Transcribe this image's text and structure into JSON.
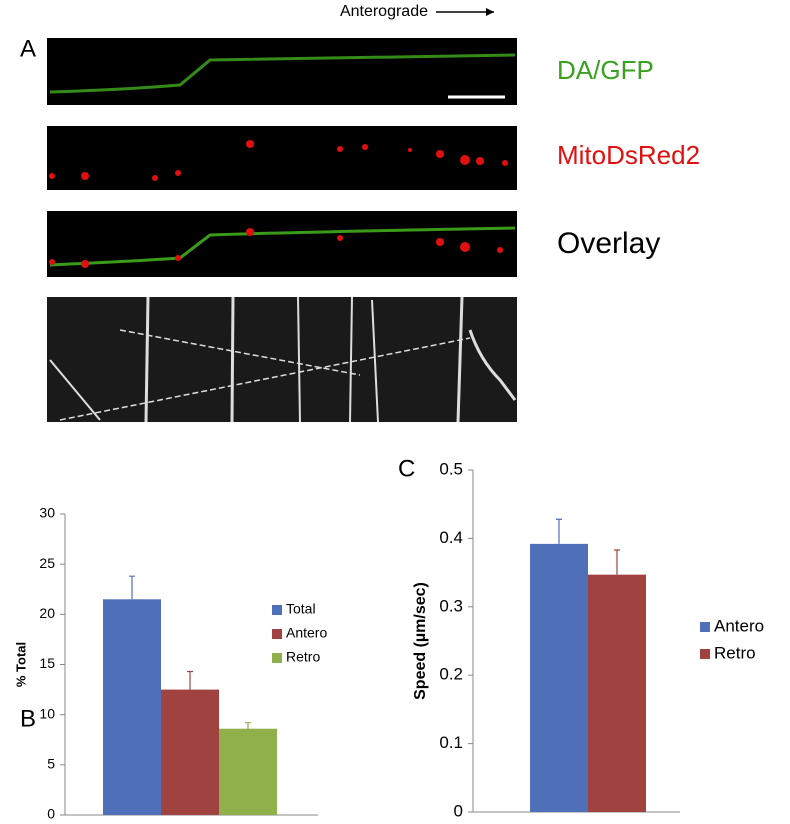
{
  "panel_a": {
    "label": "A",
    "direction": "Anterograde",
    "channels": [
      "DA/GFP",
      "MitoDsRed2",
      "Overlay"
    ]
  },
  "chart_data": [
    {
      "type": "bar",
      "label": "B",
      "ylabel": "% Total",
      "categories": [
        null
      ],
      "ylim": [
        0,
        30
      ],
      "yticks": [
        0,
        5,
        10,
        15,
        20,
        25,
        30
      ],
      "series": [
        {
          "name": "Total",
          "color": "#4f6fb8",
          "values": [
            21.5
          ],
          "errors": [
            2.3
          ]
        },
        {
          "name": "Antero",
          "color": "#a04340",
          "values": [
            12.5
          ],
          "errors": [
            1.8
          ]
        },
        {
          "name": "Retro",
          "color": "#8fb04a",
          "values": [
            8.6
          ],
          "errors": [
            0.6
          ]
        }
      ]
    },
    {
      "type": "bar",
      "label": "C",
      "ylabel": "Speed (µm/sec)",
      "categories": [
        null
      ],
      "ylim": [
        0,
        0.5
      ],
      "yticks": [
        0,
        0.1,
        0.2,
        0.3,
        0.4,
        0.5
      ],
      "series": [
        {
          "name": "Antero",
          "color": "#4f6fb8",
          "values": [
            0.392
          ],
          "errors": [
            0.036
          ]
        },
        {
          "name": "Retro",
          "color": "#a04340",
          "values": [
            0.347
          ],
          "errors": [
            0.036
          ]
        }
      ]
    }
  ]
}
